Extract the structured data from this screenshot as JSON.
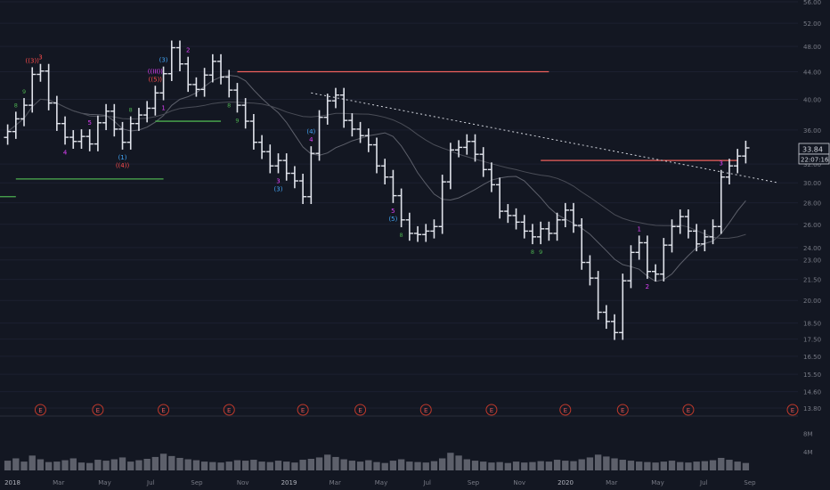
{
  "chart_data": {
    "type": "ohlc",
    "title": "",
    "xlabel": "",
    "ylabel": "",
    "ylim": [
      13.8,
      56
    ],
    "y_ticks": [
      56.0,
      52.0,
      48.0,
      44.0,
      40.0,
      36.0,
      32.0,
      30.0,
      28.0,
      26.0,
      24.0,
      23.0,
      21.5,
      20.0,
      18.5,
      17.5,
      16.5,
      15.5,
      14.6,
      13.8
    ],
    "x_ticks": [
      "2018",
      "Mar",
      "May",
      "Jul",
      "Sep",
      "Nov",
      "2019",
      "Mar",
      "May",
      "Jul",
      "Sep",
      "Nov",
      "2020",
      "Mar",
      "May",
      "Jul",
      "Sep"
    ],
    "last_price": "33.84",
    "countdown": "22:07:16",
    "series": [
      {
        "values": [
          35.8,
          37.4,
          39.2,
          43.6,
          44.1,
          39.5,
          36.8,
          35.1,
          34.6,
          35.2,
          34.3,
          36.9,
          38.4,
          36.1,
          34.5,
          36.8,
          37.9,
          38.8,
          40.9,
          43.7,
          47.8,
          45.2,
          42.1,
          41.4,
          43.5,
          45.6,
          43.2,
          41.3,
          39.2,
          37.1,
          34.5,
          33.4,
          31.8,
          32.4,
          31.0,
          30.2,
          28.6,
          33.2,
          37.6,
          39.8,
          40.6,
          37.2,
          36.1,
          35.3,
          34.2,
          31.8,
          30.6,
          28.7,
          26.4,
          25.2,
          25.1,
          25.4,
          25.8,
          30.1,
          33.6,
          33.9,
          34.6,
          33.1,
          31.4,
          29.8,
          27.2,
          26.8,
          26.2,
          25.4,
          24.9,
          25.6,
          25.2,
          26.4,
          27.3,
          25.9,
          22.8,
          21.6,
          19.2,
          18.6,
          17.9,
          21.4,
          23.6,
          24.4,
          22.1,
          21.9,
          24.2,
          25.8,
          26.7,
          25.4,
          24.3,
          24.9,
          25.8,
          30.6,
          31.8,
          32.9,
          33.84
        ]
      }
    ],
    "volume": [
      2.1,
      2.6,
      1.9,
      3.2,
      2.4,
      1.8,
      1.9,
      2.2,
      2.6,
      1.7,
      1.6,
      2.3,
      2.1,
      2.4,
      2.8,
      1.9,
      2.2,
      2.5,
      2.9,
      3.6,
      3.1,
      2.7,
      2.4,
      2.2,
      1.9,
      1.8,
      1.7,
      1.9,
      2.2,
      2.1,
      2.3,
      1.9,
      1.8,
      2.1,
      1.9,
      1.7,
      2.3,
      2.5,
      2.8,
      3.4,
      2.9,
      2.4,
      2.1,
      1.9,
      2.2,
      1.8,
      1.6,
      2.1,
      2.4,
      1.9,
      1.8,
      1.7,
      2.0,
      2.6,
      3.8,
      3.2,
      2.4,
      2.1,
      1.9,
      1.7,
      1.8,
      1.6,
      1.9,
      1.7,
      1.8,
      2.0,
      1.9,
      2.3,
      2.1,
      2.0,
      2.4,
      2.8,
      3.4,
      3.0,
      2.6,
      2.3,
      2.1,
      1.9,
      1.8,
      1.7,
      1.9,
      2.1,
      1.8,
      1.7,
      1.9,
      2.0,
      2.2,
      2.7,
      2.3,
      1.9,
      1.6
    ],
    "volume_ticks": [
      "8M",
      "4M"
    ],
    "earnings_label": "E",
    "earnings_at": [
      4,
      11,
      19,
      27,
      36,
      43,
      51,
      59,
      68,
      75,
      83,
      91
    ],
    "wave_labels": [
      {
        "text": "((3))",
        "color": "#ff4d4d",
        "i": 3,
        "pos": "above"
      },
      {
        "text": "3",
        "color": "#ff4d4d",
        "i": 4,
        "pos": "above"
      },
      {
        "text": "((III))",
        "color": "#e040fb",
        "i": 18,
        "pos": "above2"
      },
      {
        "text": "((5))",
        "color": "#ff4d4d",
        "i": 18,
        "pos": "above"
      },
      {
        "text": "(3)",
        "color": "#42a5f5",
        "i": 19,
        "pos": "above"
      },
      {
        "text": "2",
        "color": "#e040fb",
        "i": 22,
        "pos": "above"
      },
      {
        "text": "1",
        "color": "#e040fb",
        "i": 19,
        "pos": "below"
      },
      {
        "text": "4",
        "color": "#e040fb",
        "i": 7,
        "pos": "below"
      },
      {
        "text": "5",
        "color": "#e040fb",
        "i": 10,
        "pos": "above"
      },
      {
        "text": "(1)",
        "color": "#42a5f5",
        "i": 14,
        "pos": "below"
      },
      {
        "text": "((4))",
        "color": "#ff4d4d",
        "i": 14,
        "pos": "below2"
      },
      {
        "text": "(4)",
        "color": "#42a5f5",
        "i": 37,
        "pos": "above2"
      },
      {
        "text": "4",
        "color": "#e040fb",
        "i": 37,
        "pos": "above"
      },
      {
        "text": "3",
        "color": "#e040fb",
        "i": 33,
        "pos": "below"
      },
      {
        "text": "(3)",
        "color": "#42a5f5",
        "i": 33,
        "pos": "below2"
      },
      {
        "text": "5",
        "color": "#e040fb",
        "i": 47,
        "pos": "below"
      },
      {
        "text": "(5)",
        "color": "#42a5f5",
        "i": 47,
        "pos": "below2"
      },
      {
        "text": "1",
        "color": "#e040fb",
        "i": 77,
        "pos": "above"
      },
      {
        "text": "2",
        "color": "#e040fb",
        "i": 78,
        "pos": "below"
      },
      {
        "text": "3",
        "color": "#e040fb",
        "i": 87,
        "pos": "above"
      }
    ],
    "count_labels": [
      {
        "text": "8",
        "i": 1,
        "pos": "above"
      },
      {
        "text": "9",
        "i": 2,
        "pos": "above"
      },
      {
        "text": "8",
        "i": 15,
        "pos": "above"
      },
      {
        "text": "8",
        "i": 27,
        "pos": "below"
      },
      {
        "text": "9",
        "i": 28,
        "pos": "below"
      },
      {
        "text": "8",
        "i": 48,
        "pos": "below"
      },
      {
        "text": "8",
        "i": 64,
        "pos": "below"
      },
      {
        "text": "9",
        "i": 65,
        "pos": "below"
      }
    ],
    "horizontal_lines": [
      {
        "y": 44.0,
        "i1": 28,
        "i2": 66,
        "color": "#f0615d"
      },
      {
        "y": 32.4,
        "i1": 65,
        "i2": 89,
        "color": "#f0615d"
      },
      {
        "y": 30.4,
        "i1": 1,
        "i2": 19,
        "color": "#4caf50"
      },
      {
        "y": 37.1,
        "i1": 18,
        "i2": 26,
        "color": "#4caf50"
      },
      {
        "y": 28.6,
        "i1": -1,
        "i2": 1,
        "color": "#4caf50"
      }
    ],
    "trendline": {
      "y1": 40.9,
      "i1": 37,
      "y2": 30.0,
      "i2": 94
    }
  }
}
